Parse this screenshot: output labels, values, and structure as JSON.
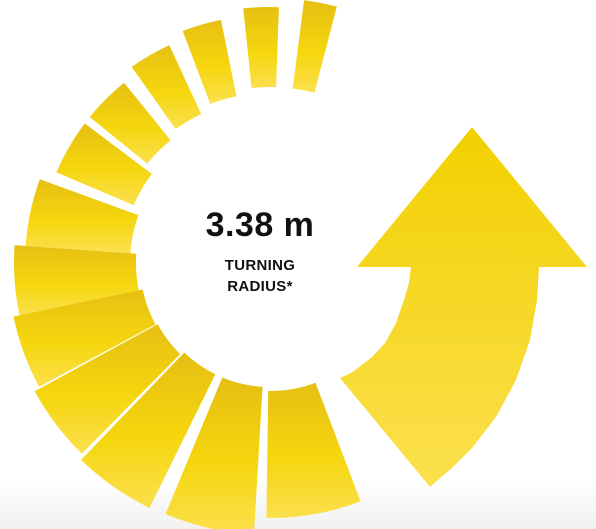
{
  "turning_radius": {
    "value": "3.38 m",
    "caption_line1": "TURNING",
    "caption_line2": "RADIUS*"
  },
  "colors": {
    "yellow_light": "#FBDF4A",
    "yellow_mid": "#F5D21A",
    "yellow_dark": "#E5BD12",
    "text": "#111111"
  },
  "icons": [
    "curved-arrow-icon",
    "spiral-segments-icon"
  ]
}
